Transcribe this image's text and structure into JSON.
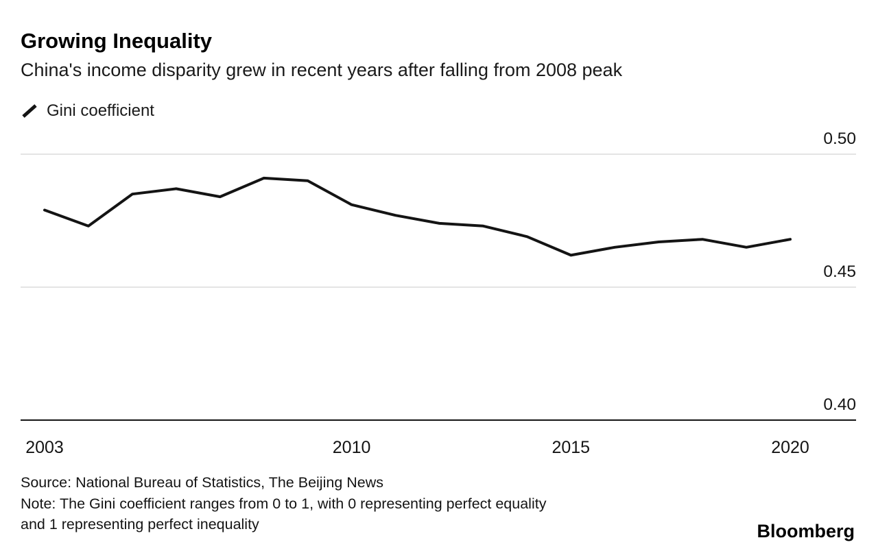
{
  "header": {
    "title": "Growing Inequality",
    "subtitle": "China's income disparity grew in recent years after falling from 2008 peak"
  },
  "legend": {
    "label": "Gini coefficient"
  },
  "chart_data": {
    "type": "line",
    "title": "Growing Inequality",
    "subtitle": "China's income disparity grew in recent years after falling from 2008 peak",
    "series": [
      {
        "name": "Gini coefficient",
        "x": [
          2003,
          2004,
          2005,
          2006,
          2007,
          2008,
          2009,
          2010,
          2011,
          2012,
          2013,
          2014,
          2015,
          2016,
          2017,
          2018,
          2019,
          2020
        ],
        "values": [
          0.479,
          0.473,
          0.485,
          0.487,
          0.484,
          0.491,
          0.49,
          0.481,
          0.477,
          0.474,
          0.473,
          0.469,
          0.462,
          0.465,
          0.467,
          0.468,
          0.465,
          0.468
        ]
      }
    ],
    "xlabel": "",
    "ylabel": "Gini coefficient",
    "ylim": [
      0.4,
      0.5
    ],
    "yticks": [
      0.5,
      0.45,
      0.4
    ],
    "xticks": [
      2003,
      2010,
      2015,
      2020
    ],
    "grid": "horizontal",
    "legend_position": "top-left",
    "line_color": "#141414",
    "grid_color": "#dcdcdc",
    "axis_color": "#141414",
    "text_color": "#141414"
  },
  "footer": {
    "source": "Source: National Bureau of Statistics, The Beijing News",
    "note_lines": [
      "Note: The Gini coefficient ranges from 0 to 1, with 0 representing perfect equality",
      "and 1 representing perfect inequality"
    ],
    "brand": "Bloomberg"
  }
}
